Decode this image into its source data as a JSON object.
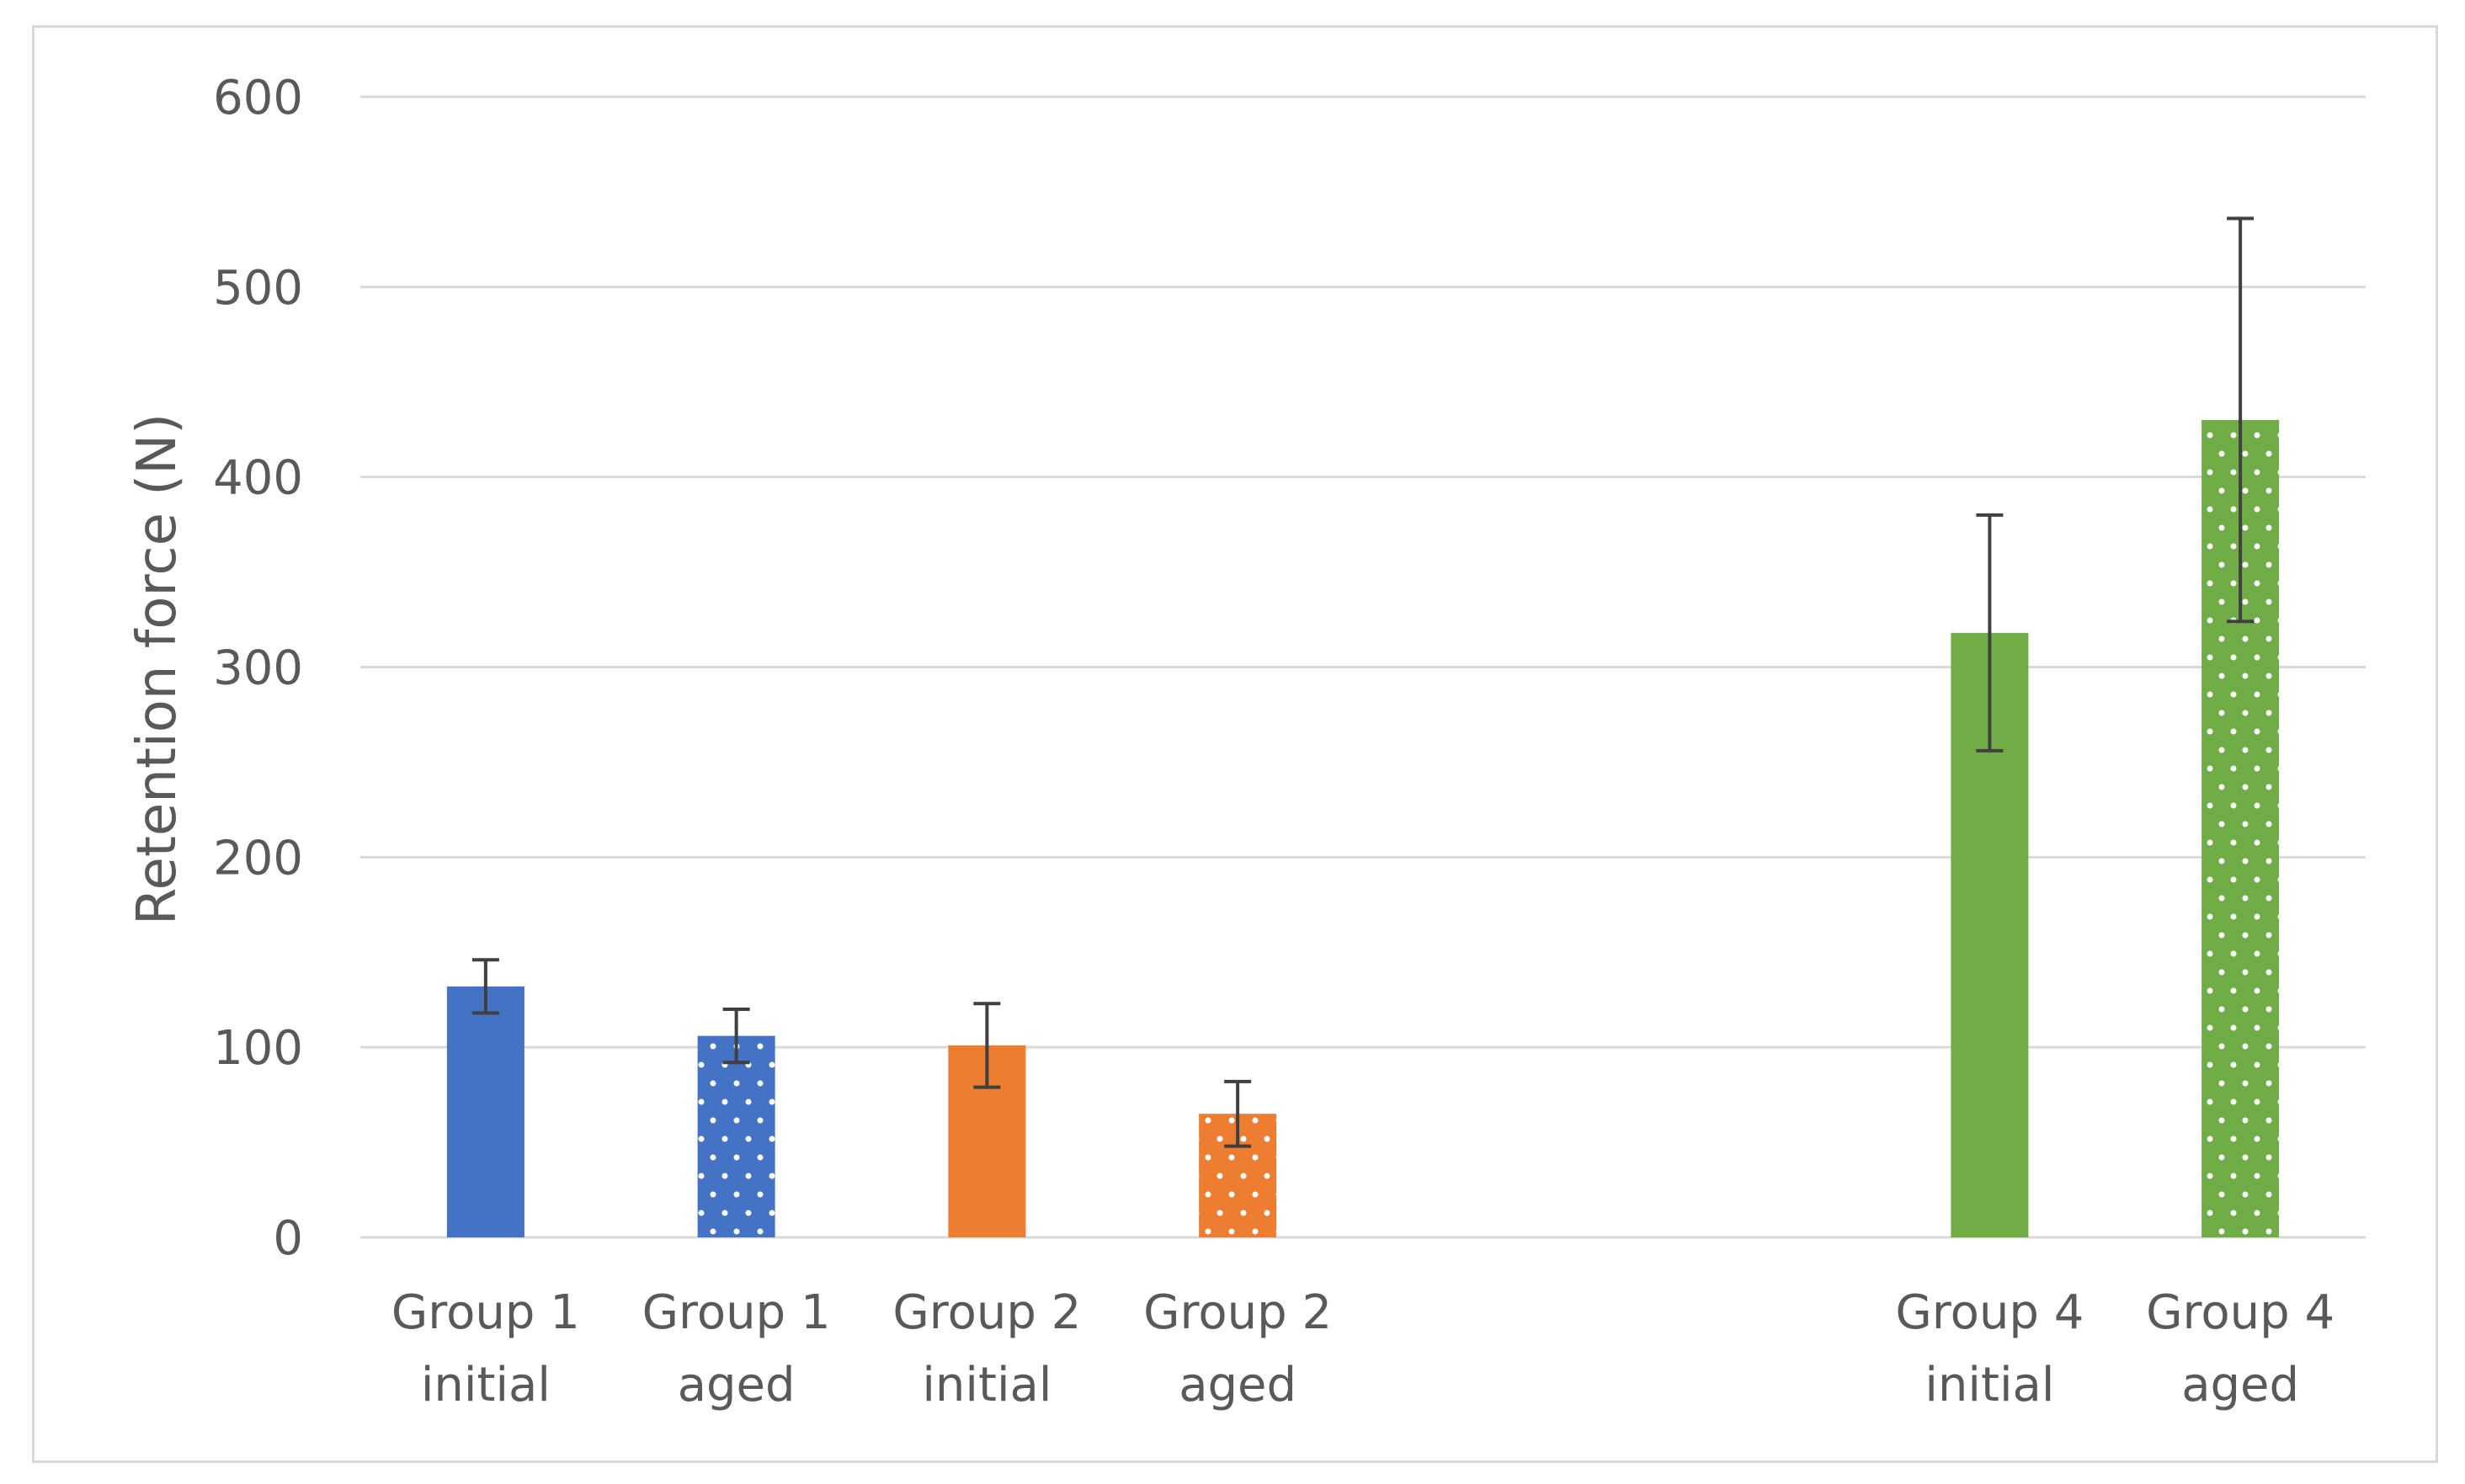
{
  "chart_data": {
    "type": "bar",
    "title": "",
    "xlabel": "",
    "ylabel": "Retention force (N)",
    "ylim": [
      0,
      600
    ],
    "yticks": [
      0,
      100,
      200,
      300,
      400,
      500,
      600
    ],
    "grid": true,
    "legend": "none",
    "categories": [
      {
        "line1": "Group 1",
        "line2": "initial"
      },
      {
        "line1": "Group 1",
        "line2": "aged"
      },
      {
        "line1": "Group 2",
        "line2": "initial"
      },
      {
        "line1": "Group 2",
        "line2": "aged"
      },
      {
        "line1": "Group 4",
        "line2": "initial"
      },
      {
        "line1": "Group 4",
        "line2": "aged"
      }
    ],
    "slots": [
      0,
      1,
      2,
      3,
      6,
      7
    ],
    "slot_count": 8,
    "values": [
      132,
      106,
      101,
      65,
      318,
      430
    ],
    "errors": [
      14,
      14,
      22,
      17,
      62,
      106
    ],
    "colors": [
      "#4472c4",
      "#4472c4",
      "#ed7d31",
      "#ed7d31",
      "#70ad47",
      "#70ad47"
    ],
    "patterns": [
      "solid",
      "dotted",
      "solid",
      "dotted",
      "solid",
      "dotted"
    ]
  }
}
